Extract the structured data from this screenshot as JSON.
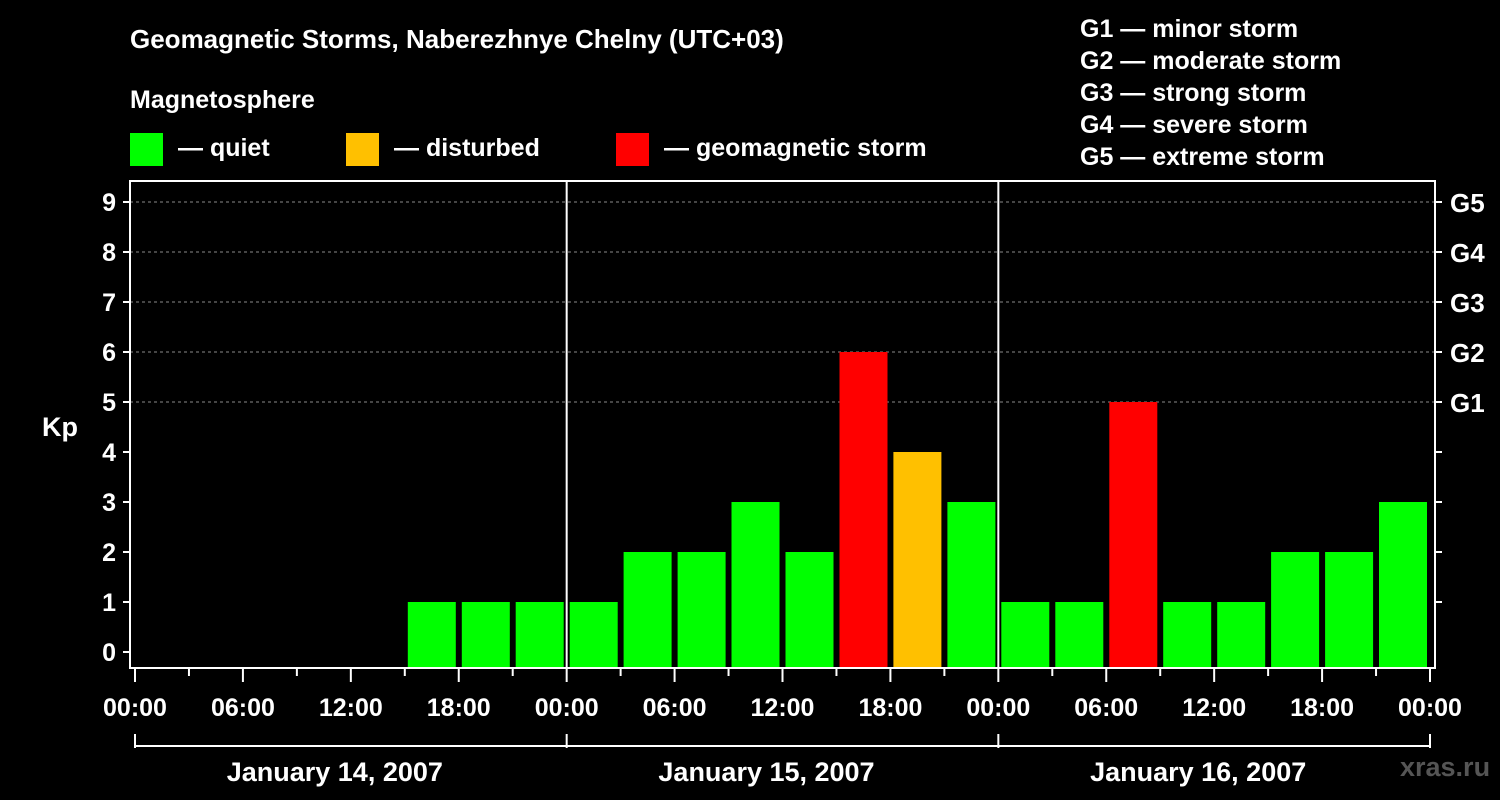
{
  "title": "Geomagnetic Storms, Naberezhnye Chelny (UTC+03)",
  "subtitle": "Magnetosphere",
  "legend": [
    {
      "label": "— quiet",
      "color": "#00ff00"
    },
    {
      "label": "— disturbed",
      "color": "#ffc000"
    },
    {
      "label": "— geomagnetic storm",
      "color": "#ff0000"
    }
  ],
  "g_scale": [
    "G1 — minor storm",
    "G2 — moderate storm",
    "G3 — strong storm",
    "G4 — severe storm",
    "G5 — extreme storm"
  ],
  "watermark": "xras.ru",
  "chart_data": {
    "type": "bar",
    "ylabel": "Kp",
    "ylim": [
      0,
      9
    ],
    "y_ticks": [
      "0",
      "1",
      "2",
      "3",
      "4",
      "5",
      "6",
      "7",
      "8",
      "9"
    ],
    "right_ticks": [
      {
        "kp": 5,
        "label": "G1"
      },
      {
        "kp": 6,
        "label": "G2"
      },
      {
        "kp": 7,
        "label": "G3"
      },
      {
        "kp": 8,
        "label": "G4"
      },
      {
        "kp": 9,
        "label": "G5"
      }
    ],
    "grid": true,
    "x_ticks": [
      "00:00",
      "06:00",
      "12:00",
      "18:00",
      "00:00",
      "06:00",
      "12:00",
      "18:00",
      "00:00",
      "06:00",
      "12:00",
      "18:00",
      "00:00"
    ],
    "days": [
      "January 14, 2007",
      "January 15, 2007",
      "January 16, 2007"
    ],
    "interval_hours": 3,
    "values": [
      0,
      0,
      0,
      0,
      0,
      1,
      1,
      1,
      1,
      2,
      2,
      3,
      2,
      6,
      4,
      3,
      1,
      1,
      5,
      1,
      1,
      2,
      2,
      3
    ],
    "colors": {
      "quiet": "#00ff00",
      "disturbed": "#ffc000",
      "storm": "#ff0000"
    }
  }
}
